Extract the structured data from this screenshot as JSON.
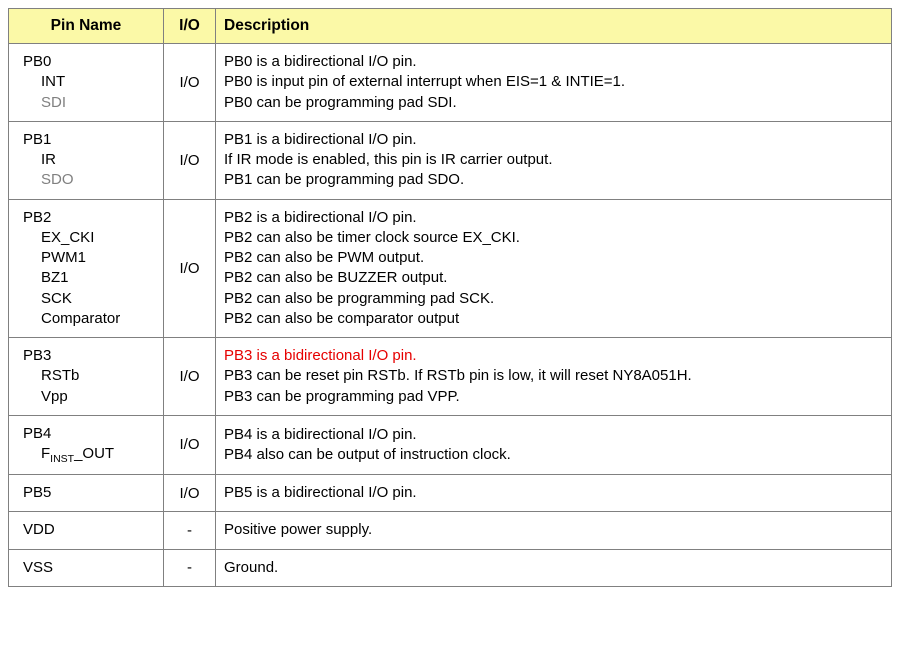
{
  "columns": {
    "pin": "Pin Name",
    "io": "I/O",
    "desc": "Description"
  },
  "header_bg": "#fbf9a7",
  "border_color": "#808080",
  "grey_text": "#808080",
  "red_text": "#e60000",
  "col_widths": {
    "pin": 155,
    "io": 52
  },
  "rows": [
    {
      "pin_main": "PB0",
      "pin_subs": [
        {
          "text": "INT",
          "grey": false
        },
        {
          "text": "SDI",
          "grey": true
        }
      ],
      "io": "I/O",
      "desc_lines": [
        {
          "text": "PB0 is a bidirectional I/O pin.",
          "red": false
        },
        {
          "text": "PB0 is input pin of external interrupt when EIS=1 & INTIE=1.",
          "red": false
        },
        {
          "text": "PB0 can be programming pad SDI.",
          "red": false
        }
      ]
    },
    {
      "pin_main": "PB1",
      "pin_subs": [
        {
          "text": "IR",
          "grey": false
        },
        {
          "text": "SDO",
          "grey": true
        }
      ],
      "io": "I/O",
      "desc_lines": [
        {
          "text": "PB1 is a bidirectional I/O pin.",
          "red": false
        },
        {
          "text": "If IR mode is enabled, this pin is IR carrier output.",
          "red": false
        },
        {
          "text": "PB1 can be programming pad SDO.",
          "red": false
        }
      ]
    },
    {
      "pin_main": "PB2",
      "pin_subs": [
        {
          "text": "EX_CKI",
          "grey": false
        },
        {
          "text": "PWM1",
          "grey": false
        },
        {
          "text": "BZ1",
          "grey": false
        },
        {
          "text": "SCK",
          "grey": false
        },
        {
          "text": "Comparator",
          "grey": false
        }
      ],
      "io": "I/O",
      "desc_lines": [
        {
          "text": "PB2 is a bidirectional I/O pin.",
          "red": false
        },
        {
          "text": "PB2 can also be timer clock source EX_CKI.",
          "red": false
        },
        {
          "text": "PB2 can also be PWM output.",
          "red": false
        },
        {
          "text": "PB2 can also be BUZZER output.",
          "red": false
        },
        {
          "text": "PB2 can also be programming pad SCK.",
          "red": false
        },
        {
          "text": "PB2 can also be comparator output",
          "red": false
        }
      ]
    },
    {
      "pin_main": "PB3",
      "pin_subs": [
        {
          "text": "RSTb",
          "grey": false
        },
        {
          "text": "Vpp",
          "grey": false
        }
      ],
      "io": "I/O",
      "desc_lines": [
        {
          "text": "PB3 is a bidirectional I/O pin.",
          "red": true
        },
        {
          "text": "PB3 can be reset pin RSTb. If RSTb pin is low, it will reset NY8A051H.",
          "red": false
        },
        {
          "text": "PB3 can be programming pad VPP.",
          "red": false
        }
      ]
    },
    {
      "pin_main": "PB4",
      "pin_subs": [
        {
          "text": "F<sub>INST</sub>_OUT",
          "grey": false,
          "html": true
        }
      ],
      "io": "I/O",
      "desc_lines": [
        {
          "text": "PB4 is a bidirectional I/O pin.",
          "red": false
        },
        {
          "text": "PB4 also can be output of instruction clock.",
          "red": false
        }
      ]
    },
    {
      "pin_main": "PB5",
      "pin_subs": [],
      "io": "I/O",
      "desc_lines": [
        {
          "text": "PB5 is a bidirectional I/O pin.",
          "red": false
        }
      ]
    },
    {
      "pin_main": "VDD",
      "pin_subs": [],
      "io": "-",
      "desc_lines": [
        {
          "text": "Positive power supply.",
          "red": false
        }
      ]
    },
    {
      "pin_main": "VSS",
      "pin_subs": [],
      "io": "-",
      "desc_lines": [
        {
          "text": "Ground.",
          "red": false
        }
      ]
    }
  ]
}
